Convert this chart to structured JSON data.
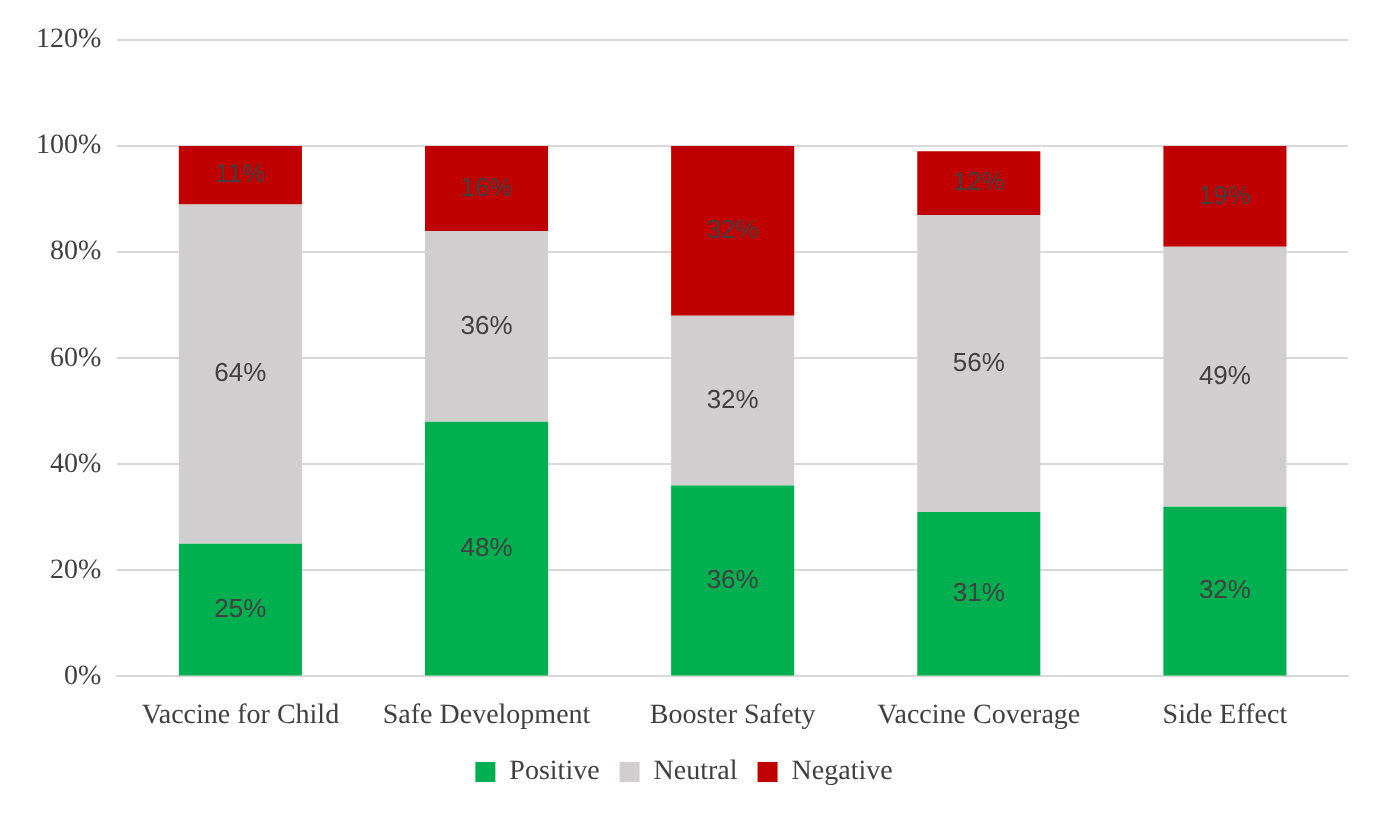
{
  "chart_data": {
    "type": "bar",
    "stacked": true,
    "categories": [
      "Vaccine for Child",
      "Safe Development",
      "Booster Safety",
      "Vaccine Coverage",
      "Side Effect"
    ],
    "series": [
      {
        "name": "Positive",
        "color": "#00b050",
        "values": [
          25,
          48,
          36,
          31,
          32
        ],
        "value_labels": [
          "25%",
          "48%",
          "36%",
          "31%",
          "32%"
        ]
      },
      {
        "name": "Neutral",
        "color": "#d0cece",
        "values": [
          64,
          36,
          32,
          56,
          49
        ],
        "value_labels": [
          "64%",
          "36%",
          "32%",
          "56%",
          "49%"
        ]
      },
      {
        "name": "Negative",
        "color": "#c00000",
        "values": [
          11,
          16,
          32,
          12,
          19
        ],
        "value_labels": [
          "11%",
          "16%",
          "32%",
          "12%",
          "19%"
        ]
      }
    ],
    "ylim": [
      0,
      120
    ],
    "yticks": [
      {
        "value": 0,
        "label": "0%"
      },
      {
        "value": 20,
        "label": "20%"
      },
      {
        "value": 40,
        "label": "40%"
      },
      {
        "value": 60,
        "label": "60%"
      },
      {
        "value": 80,
        "label": "80%"
      },
      {
        "value": 100,
        "label": "100%"
      },
      {
        "value": 120,
        "label": "120%"
      }
    ],
    "grid": "y",
    "legend": "bottom"
  }
}
